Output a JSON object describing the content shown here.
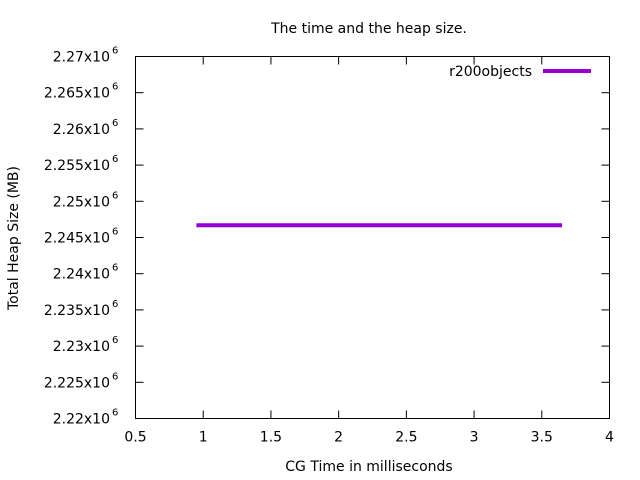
{
  "chart_data": {
    "type": "line",
    "title": "The time and the heap size.",
    "xlabel": "CG Time in milliseconds",
    "ylabel": "Total Heap Size (MB)",
    "xlim": [
      0.5,
      4
    ],
    "ylim": [
      2.22,
      2.27
    ],
    "x_ticks": [
      0.5,
      1,
      1.5,
      2,
      2.5,
      3,
      3.5,
      4
    ],
    "x_tick_labels": [
      "0.5",
      "1",
      "1.5",
      "2",
      "2.5",
      "3",
      "3.5",
      "4"
    ],
    "y_ticks": [
      2.22,
      2.225,
      2.23,
      2.235,
      2.24,
      2.245,
      2.25,
      2.255,
      2.26,
      2.265,
      2.27
    ],
    "y_tick_labels": [
      "2.22x10",
      "2.225x10",
      "2.23x10",
      "2.235x10",
      "2.24x10",
      "2.245x10",
      "2.25x10",
      "2.255x10",
      "2.26x10",
      "2.265x10",
      "2.27x10"
    ],
    "y_tick_exponent": "6",
    "y_unit_scale": 1000000,
    "grid": false,
    "legend_position": "top-right",
    "series": [
      {
        "name": "r200objects",
        "color": "#9400D3",
        "x": [
          0.95,
          3.65
        ],
        "y": [
          2.2467,
          2.2467
        ]
      }
    ]
  }
}
